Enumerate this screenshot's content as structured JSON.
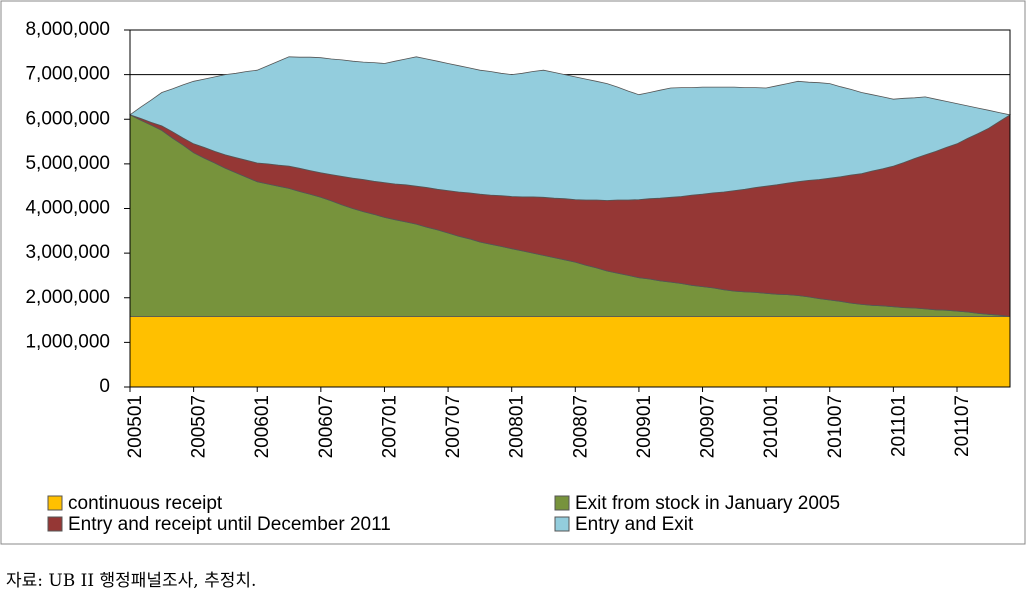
{
  "chart_data": {
    "type": "stacked_area",
    "categories": [
      "200501",
      null,
      null,
      null,
      null,
      null,
      "200507",
      null,
      null,
      null,
      null,
      null,
      "200601",
      null,
      null,
      null,
      null,
      null,
      "200607",
      null,
      null,
      null,
      null,
      null,
      "200701",
      null,
      null,
      null,
      null,
      null,
      "200707",
      null,
      null,
      null,
      null,
      null,
      "200801",
      null,
      null,
      null,
      null,
      null,
      "200807",
      null,
      null,
      null,
      null,
      null,
      "200901",
      null,
      null,
      null,
      null,
      null,
      "200907",
      null,
      null,
      null,
      null,
      null,
      "201001",
      null,
      null,
      null,
      null,
      null,
      "201007",
      null,
      null,
      null,
      null,
      null,
      "201101",
      null,
      null,
      null,
      null,
      null,
      "201107",
      null,
      null,
      null,
      null,
      null
    ],
    "series": [
      {
        "name": "continuous receipt",
        "color": "#ffc000",
        "values": [
          1580000,
          1580000,
          1580000,
          1580000,
          1580000,
          1580000,
          1580000,
          1580000,
          1580000,
          1580000,
          1580000,
          1580000,
          1580000,
          1580000,
          1580000,
          1580000,
          1580000,
          1580000,
          1580000,
          1580000,
          1580000,
          1580000,
          1580000,
          1580000,
          1580000,
          1580000,
          1580000,
          1580000,
          1580000,
          1580000,
          1580000,
          1580000,
          1580000,
          1580000,
          1580000,
          1580000,
          1580000,
          1580000,
          1580000,
          1580000,
          1580000,
          1580000,
          1580000,
          1580000,
          1580000,
          1580000,
          1580000,
          1580000,
          1580000,
          1580000,
          1580000,
          1580000,
          1580000,
          1580000,
          1580000,
          1580000,
          1580000,
          1580000,
          1580000,
          1580000,
          1580000,
          1580000,
          1580000,
          1580000,
          1580000,
          1580000,
          1580000,
          1580000,
          1580000,
          1580000,
          1580000,
          1580000,
          1580000,
          1580000,
          1580000,
          1580000,
          1580000,
          1580000,
          1580000,
          1580000,
          1580000,
          1580000,
          1580000,
          1580000
        ]
      },
      {
        "name": "Exit from stock in January 2005",
        "color": "#77933c",
        "values": [
          4520000,
          4400000,
          4290000,
          4170000,
          4000000,
          3840000,
          3670000,
          3550000,
          3440000,
          3320000,
          3220000,
          3120000,
          3020000,
          2970000,
          2920000,
          2870000,
          2800000,
          2740000,
          2670000,
          2590000,
          2500000,
          2420000,
          2350000,
          2290000,
          2220000,
          2170000,
          2120000,
          2070000,
          2000000,
          1940000,
          1870000,
          1800000,
          1740000,
          1670000,
          1620000,
          1570000,
          1520000,
          1470000,
          1420000,
          1370000,
          1320000,
          1270000,
          1220000,
          1150000,
          1090000,
          1020000,
          970000,
          920000,
          870000,
          840000,
          800000,
          770000,
          740000,
          700000,
          670000,
          640000,
          600000,
          570000,
          550000,
          540000,
          520000,
          500000,
          490000,
          470000,
          440000,
          400000,
          370000,
          340000,
          300000,
          270000,
          250000,
          240000,
          220000,
          200000,
          190000,
          170000,
          150000,
          140000,
          120000,
          100000,
          70000,
          50000,
          30000,
          0
        ]
      },
      {
        "name": "Entry and receipt until December 2011",
        "color": "#953735",
        "values": [
          0,
          40000,
          60000,
          100000,
          140000,
          160000,
          200000,
          240000,
          260000,
          300000,
          340000,
          380000,
          420000,
          450000,
          470000,
          500000,
          520000,
          530000,
          550000,
          590000,
          640000,
          680000,
          720000,
          740000,
          780000,
          800000,
          830000,
          850000,
          890000,
          910000,
          950000,
          990000,
          1030000,
          1070000,
          1100000,
          1140000,
          1170000,
          1210000,
          1260000,
          1300000,
          1330000,
          1370000,
          1400000,
          1460000,
          1520000,
          1580000,
          1640000,
          1690000,
          1750000,
          1800000,
          1850000,
          1900000,
          1950000,
          2020000,
          2070000,
          2130000,
          2190000,
          2250000,
          2300000,
          2350000,
          2400000,
          2450000,
          2500000,
          2550000,
          2610000,
          2670000,
          2730000,
          2790000,
          2870000,
          2930000,
          3010000,
          3070000,
          3150000,
          3250000,
          3350000,
          3450000,
          3550000,
          3650000,
          3750000,
          3890000,
          4030000,
          4170000,
          4340000,
          4520000
        ]
      },
      {
        "name": "Entry and Exit",
        "color": "#93cddd",
        "values": [
          0,
          250000,
          500000,
          750000,
          960000,
          1190000,
          1400000,
          1530000,
          1670000,
          1800000,
          1890000,
          1990000,
          2080000,
          2200000,
          2330000,
          2450000,
          2490000,
          2540000,
          2580000,
          2590000,
          2610000,
          2620000,
          2630000,
          2660000,
          2670000,
          2750000,
          2820000,
          2900000,
          2880000,
          2870000,
          2850000,
          2830000,
          2800000,
          2780000,
          2770000,
          2740000,
          2730000,
          2770000,
          2810000,
          2850000,
          2820000,
          2780000,
          2750000,
          2710000,
          2660000,
          2620000,
          2530000,
          2440000,
          2350000,
          2380000,
          2420000,
          2450000,
          2440000,
          2410000,
          2400000,
          2370000,
          2350000,
          2320000,
          2280000,
          2240000,
          2200000,
          2220000,
          2230000,
          2250000,
          2200000,
          2170000,
          2120000,
          2020000,
          1920000,
          1820000,
          1710000,
          1610000,
          1500000,
          1440000,
          1360000,
          1300000,
          1170000,
          1030000,
          900000,
          730000,
          570000,
          400000,
          200000,
          0
        ]
      }
    ],
    "ylim": [
      0,
      8000000
    ],
    "yticks": [
      0,
      {
        "value": 1000000,
        "label": "1,000,000"
      },
      {
        "value": 2000000,
        "label": "2,000,000"
      },
      {
        "value": 3000000,
        "label": "3,000,000"
      },
      {
        "value": 4000000,
        "label": "4,000,000"
      },
      {
        "value": 5000000,
        "label": "5,000,000"
      },
      {
        "value": 6000000,
        "label": "6,000,000"
      },
      {
        "value": 7000000,
        "label": "7,000,000"
      },
      {
        "value": 8000000,
        "label": "8,000,000"
      }
    ],
    "grid": true
  },
  "footer": {
    "source": "자료: UB II 행정패널조사, 추정치."
  }
}
